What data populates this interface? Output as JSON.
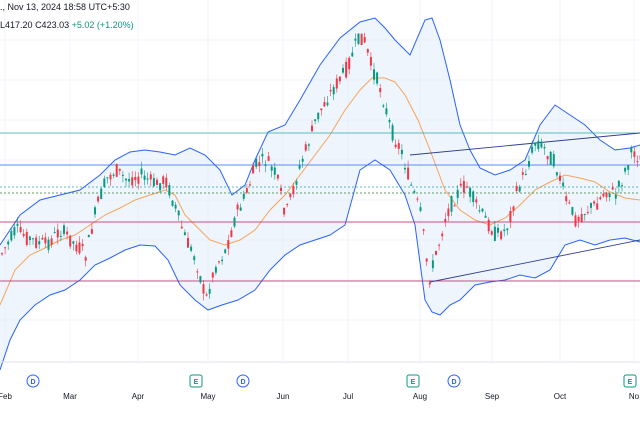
{
  "header": {
    "datetime": "., Nov 13, 2024 18:58 UTC+5:30",
    "low": "L417.20",
    "close": "C423.03",
    "change": "+5.02 (+1.20%)"
  },
  "chart_data": {
    "type": "candlestick",
    "months": [
      "Feb",
      "Mar",
      "Apr",
      "May",
      "Jun",
      "Jul",
      "Aug",
      "Sep",
      "Oct",
      "No"
    ],
    "event_markers": [
      {
        "label": "D",
        "kind": "dividend",
        "color": "#2962ff"
      },
      {
        "label": "E",
        "kind": "earnings",
        "color": "#089981"
      },
      {
        "label": "D",
        "kind": "dividend",
        "color": "#2962ff"
      },
      {
        "label": "E",
        "kind": "earnings",
        "color": "#089981"
      },
      {
        "label": "D",
        "kind": "dividend",
        "color": "#2962ff"
      },
      {
        "label": "E",
        "kind": "earnings",
        "color": "#089981"
      }
    ],
    "colors": {
      "up": "#089981",
      "down": "#f23645",
      "band": "#2962ff",
      "band_fill": "#e3effb",
      "basis": "#f7a35c",
      "h_lines_teal": "#2aa9a9",
      "h_lines_blue": "#2962ff",
      "h_lines_red": "#c2185b"
    }
  }
}
